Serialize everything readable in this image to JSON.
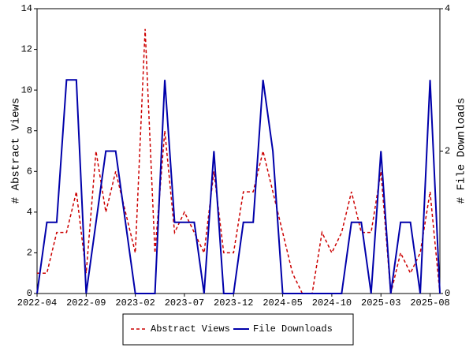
{
  "chart_data": {
    "type": "line",
    "categories": [
      "2022-04",
      null,
      null,
      null,
      null,
      "2022-09",
      null,
      null,
      null,
      null,
      "2023-02",
      null,
      null,
      null,
      null,
      "2023-07",
      null,
      null,
      null,
      null,
      "2023-12",
      null,
      null,
      null,
      null,
      "2024-05",
      null,
      null,
      null,
      null,
      "2024-10",
      null,
      null,
      null,
      null,
      "2025-03",
      null,
      null,
      null,
      null,
      "2025-08",
      null
    ],
    "series": [
      {
        "name": "Abstract Views",
        "color": "#cc0000",
        "dashed": true,
        "values": [
          1,
          1,
          3,
          3,
          5,
          1,
          7,
          4,
          6,
          4,
          2,
          13,
          2,
          8,
          3,
          4,
          3,
          2,
          6,
          2,
          2,
          5,
          5,
          7,
          5,
          3,
          1,
          0,
          0,
          3,
          2,
          3,
          5,
          3,
          3,
          6,
          0,
          2,
          1,
          2,
          5,
          0
        ]
      },
      {
        "name": "File Downloads",
        "color": "#0000aa",
        "axis": "y2",
        "values": [
          0,
          1,
          1,
          3,
          3,
          0,
          1,
          2,
          2,
          1,
          0,
          0,
          0,
          3,
          1,
          1,
          1,
          0,
          2,
          0,
          0,
          1,
          1,
          3,
          2,
          0,
          0,
          0,
          0,
          0,
          0,
          0,
          1,
          1,
          0,
          2,
          0,
          1,
          1,
          0,
          3,
          0
        ]
      }
    ],
    "y_label": "# Abstract Views",
    "y2_label": "# File Downloads",
    "ylim": [
      0,
      14
    ],
    "yticks": [
      0,
      2,
      4,
      6,
      8,
      10,
      12,
      14
    ],
    "y2lim": [
      0,
      4
    ],
    "y2ticks": [
      0,
      2,
      4
    ],
    "legend": "bottom"
  }
}
